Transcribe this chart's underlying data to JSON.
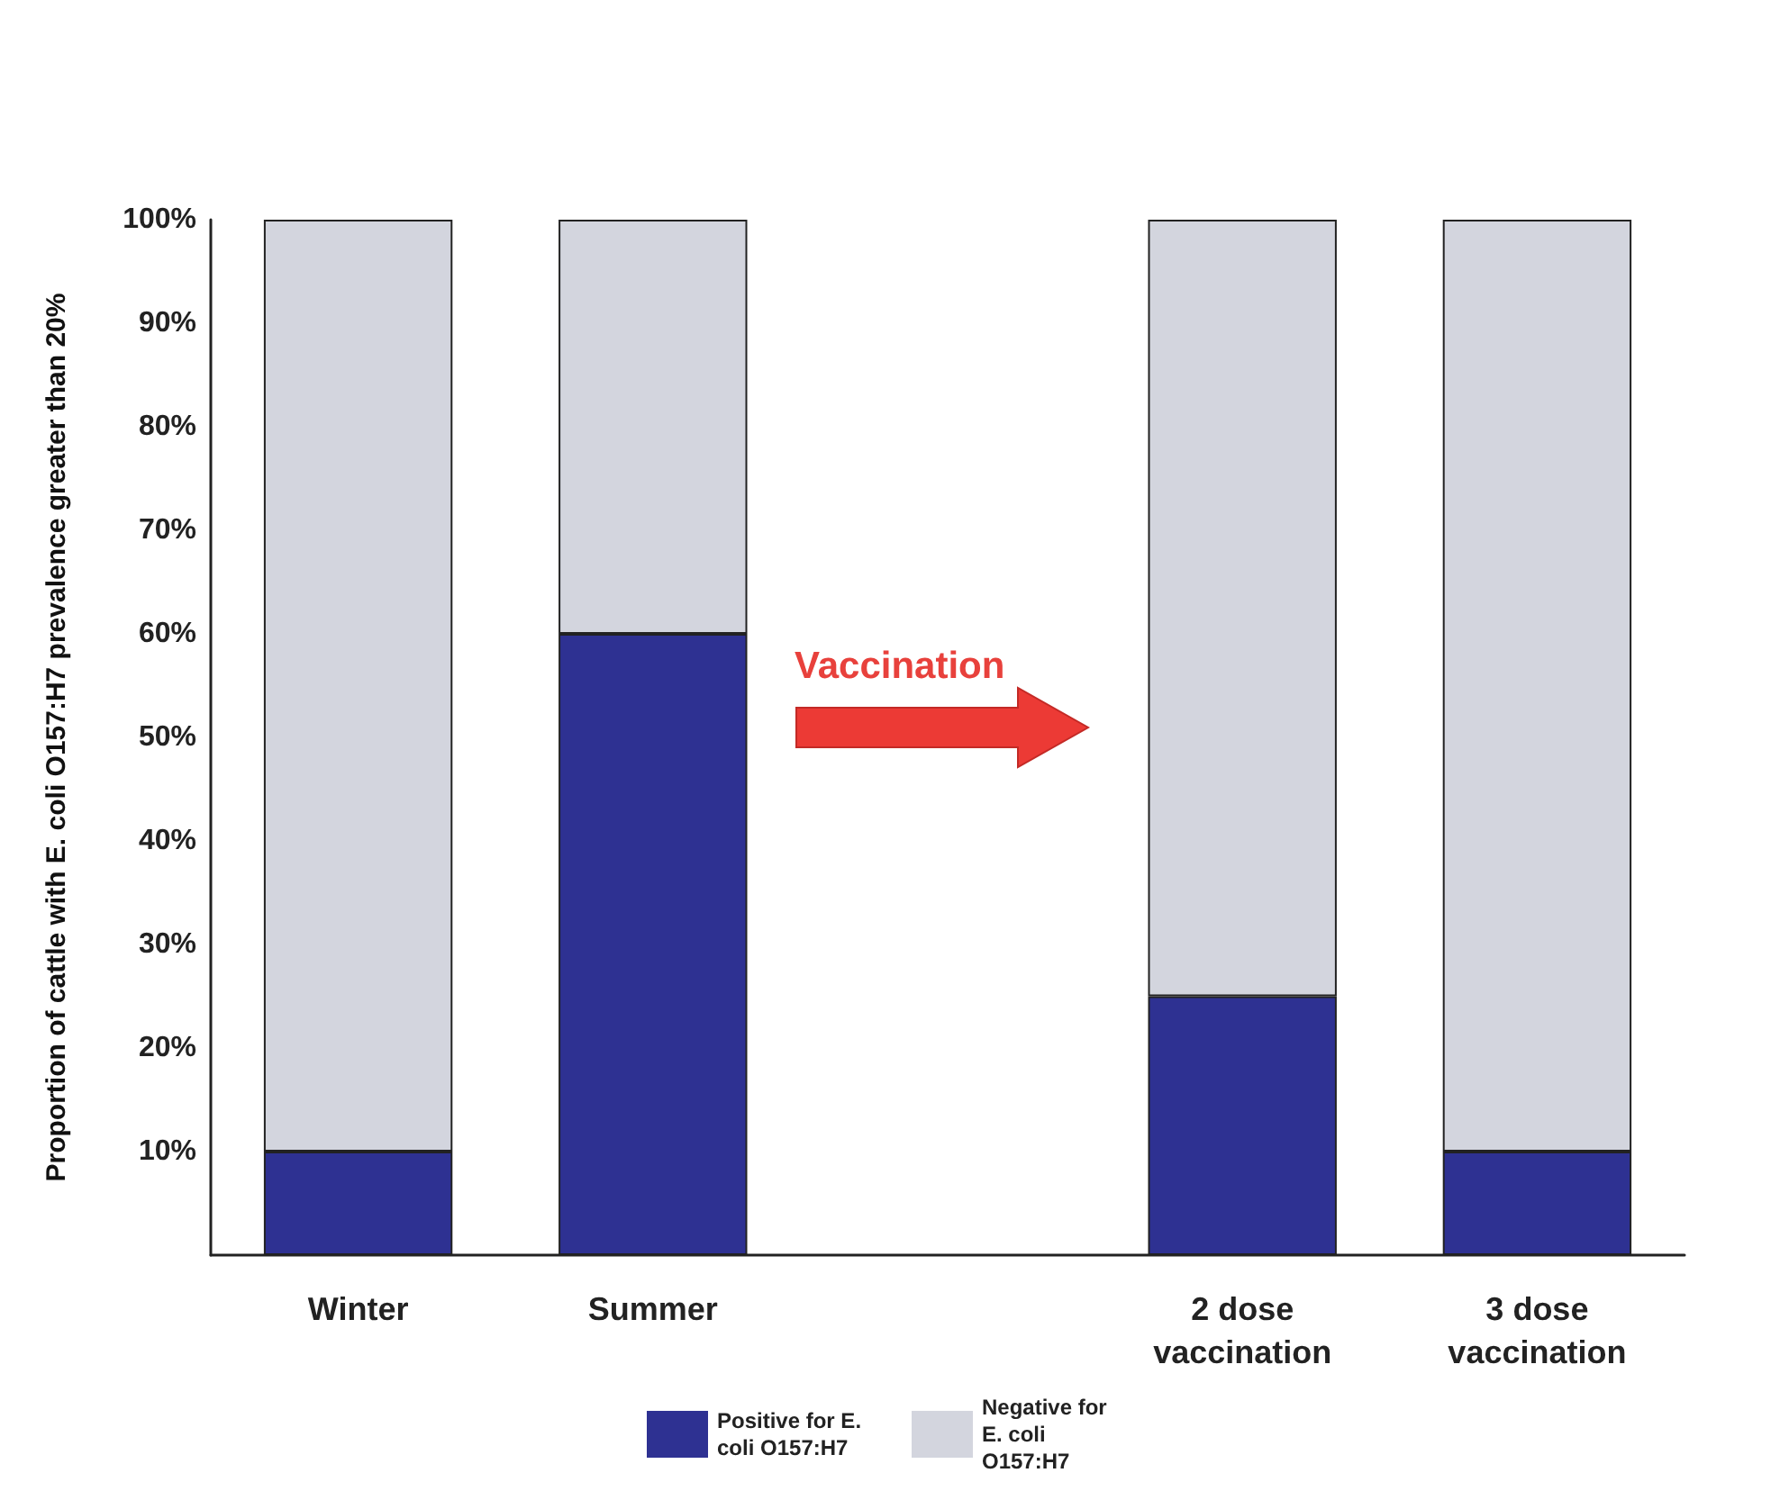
{
  "chart_data": {
    "type": "bar",
    "stacked": true,
    "ylabel": "Proportion of cattle with E. coli O157:H7 prevalence greater than 20%",
    "categories": [
      "Winter",
      "Summer",
      null,
      "2 dose\nvaccination",
      "3 dose\nvaccination"
    ],
    "series": [
      {
        "name": "Positive for E. coli O157:H7",
        "color": "#2e3192",
        "values": [
          10,
          60,
          null,
          25,
          10
        ]
      },
      {
        "name": "Negative for E. coli O157:H7",
        "color": "#d3d5de",
        "values": [
          90,
          40,
          null,
          75,
          90
        ]
      }
    ],
    "ylim": [
      0,
      100
    ],
    "yticks": [
      {
        "value": 0,
        "label": null
      },
      {
        "value": 10,
        "label": "10%"
      },
      {
        "value": 20,
        "label": "20%"
      },
      {
        "value": 30,
        "label": "30%"
      },
      {
        "value": 40,
        "label": "40%"
      },
      {
        "value": 50,
        "label": "50%"
      },
      {
        "value": 60,
        "label": "60%"
      },
      {
        "value": 70,
        "label": "70%"
      },
      {
        "value": 80,
        "label": "80%"
      },
      {
        "value": 90,
        "label": "90%"
      },
      {
        "value": 100,
        "label": "100%"
      }
    ],
    "annotations": [
      "Vaccination"
    ],
    "grid": false,
    "legend": "bottom"
  }
}
